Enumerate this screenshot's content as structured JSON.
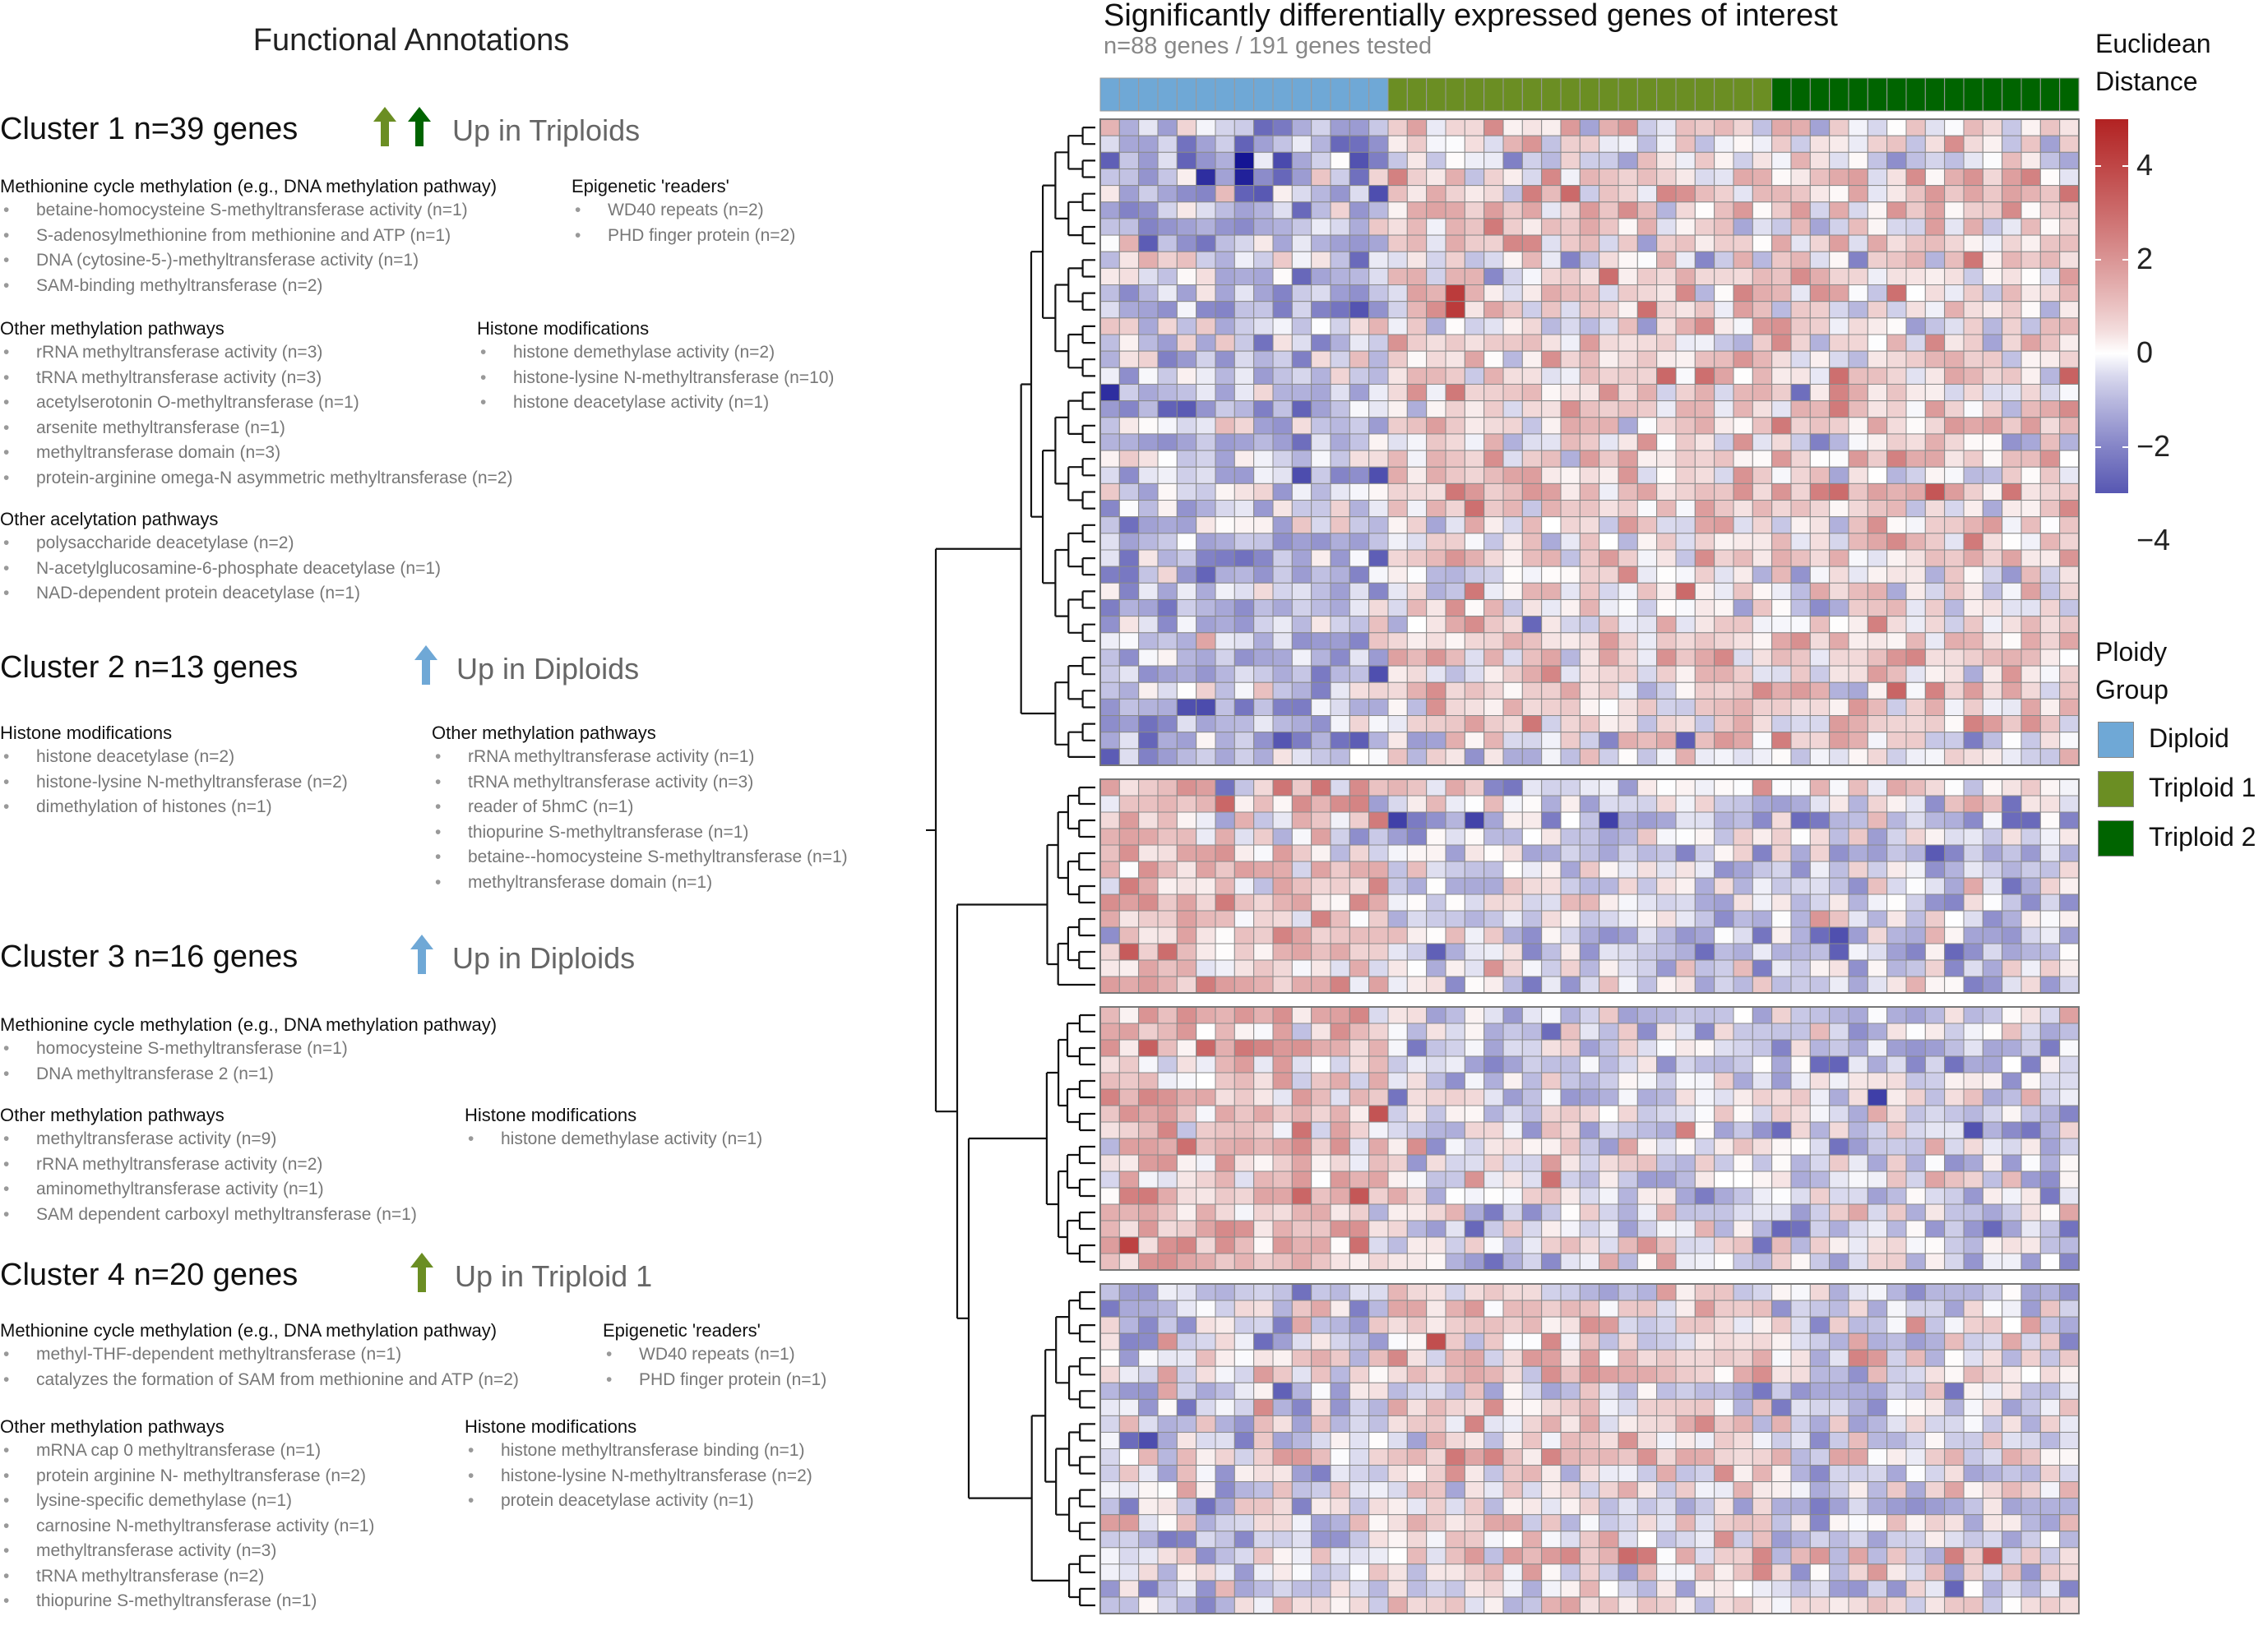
{
  "annotations": {
    "title": "Functional Annotations",
    "clusters": [
      {
        "title": "Cluster 1 n=39 genes",
        "up_label": "Up in Triploids",
        "arrow_colors": [
          "#6b8e23",
          "#006400"
        ],
        "groups": [
          {
            "heading": "Methionine cycle methylation (e.g., DNA methylation pathway)",
            "items": [
              "betaine-homocysteine S-methyltransferase activity (n=1)",
              "S-adenosylmethionine from methionine and ATP (n=1)",
              "DNA (cytosine-5-)-methyltransferase activity (n=1)",
              "SAM-binding methyltransferase (n=2)"
            ]
          },
          {
            "heading": "Epigenetic 'readers'",
            "items": [
              "WD40 repeats (n=2)",
              "PHD finger protein (n=2)"
            ]
          },
          {
            "heading": "Other methylation pathways",
            "items": [
              "rRNA methyltransferase activity (n=3)",
              "tRNA methyltransferase activity (n=3)",
              "acetylserotonin O-methyltransferase (n=1)",
              "arsenite methyltransferase (n=1)",
              "methyltransferase domain (n=3)",
              "protein-arginine omega-N asymmetric methyltransferase (n=2)"
            ]
          },
          {
            "heading": "Histone modifications",
            "items": [
              "histone demethylase activity (n=2)",
              "histone-lysine N-methyltransferase (n=10)",
              "histone deacetylase activity (n=1)"
            ]
          },
          {
            "heading": "Other acelytation pathways",
            "items": [
              "polysaccharide deacetylase (n=2)",
              "N-acetylglucosamine-6-phosphate deacetylase (n=1)",
              "NAD-dependent protein deacetylase (n=1)"
            ]
          }
        ]
      },
      {
        "title": "Cluster 2 n=13 genes",
        "up_label": "Up in Diploids",
        "arrow_colors": [
          "#6fa8d6"
        ],
        "groups": [
          {
            "heading": "Histone modifications",
            "items": [
              "histone deacetylase (n=2)",
              "histone-lysine N-methyltransferase (n=2)",
              "dimethylation of histones (n=1)"
            ]
          },
          {
            "heading": "Other methylation pathways",
            "items": [
              "rRNA methyltransferase activity (n=1)",
              "tRNA methyltransferase activity (n=3)",
              "reader of 5hmC (n=1)",
              "thiopurine S-methyltransferase (n=1)",
              "betaine--homocysteine S-methyltransferase (n=1)",
              "methyltransferase domain (n=1)"
            ]
          }
        ]
      },
      {
        "title": "Cluster 3 n=16 genes",
        "up_label": "Up in Diploids",
        "arrow_colors": [
          "#6fa8d6"
        ],
        "groups": [
          {
            "heading": "Methionine cycle methylation (e.g., DNA methylation pathway)",
            "items": [
              "homocysteine S-methyltransferase (n=1)",
              "DNA methyltransferase 2 (n=1)"
            ]
          },
          {
            "heading": "Other methylation pathways",
            "items": [
              "methyltransferase activity (n=9)",
              "rRNA methyltransferase activity (n=2)",
              "aminomethyltransferase activity (n=1)",
              "SAM dependent carboxyl methyltransferase (n=1)"
            ]
          },
          {
            "heading": "Histone modifications",
            "items": [
              "histone demethylase activity  (n=1)"
            ]
          }
        ]
      },
      {
        "title": "Cluster 4 n=20 genes",
        "up_label": "Up in Triploid 1",
        "arrow_colors": [
          "#6b8e23"
        ],
        "groups": [
          {
            "heading": "Methionine cycle methylation (e.g., DNA methylation pathway)",
            "items": [
              "methyl-THF-dependent methyltransferase (n=1)",
              "catalyzes the formation of SAM from methionine and ATP (n=2)"
            ]
          },
          {
            "heading": "Epigenetic 'readers'",
            "items": [
              "WD40 repeats (n=1)",
              "PHD finger protein (n=1)"
            ]
          },
          {
            "heading": "Other methylation pathways",
            "items": [
              "mRNA cap 0 methyltransferase (n=1)",
              "protein arginine N- methyltransferase (n=2)",
              "lysine-specific demethylase (n=1)",
              "carnosine N-methyltransferase activity (n=1)",
              "methyltransferase activity (n=3)",
              "tRNA methyltransferase (n=2)",
              "thiopurine S-methyltransferase (n=1)"
            ]
          },
          {
            "heading": "Histone modifications",
            "items": [
              "histone methyltransferase binding  (n=1)",
              "histone-lysine N-methyltransferase (n=2)",
              "protein deacetylase activity (n=1)"
            ]
          }
        ]
      }
    ]
  },
  "chart_data": {
    "type": "heatmap",
    "title": "Significantly differentially expressed genes of interest",
    "subtitle": "n=88 genes / 191 genes tested",
    "color_scale": {
      "title_line1": "Euclidean",
      "title_line2": "Distance",
      "ticks": [
        "4",
        "2",
        "0",
        "−2",
        "−4"
      ],
      "tick_values": [
        4,
        2,
        0,
        -2,
        -4
      ],
      "range": [
        -5,
        5
      ],
      "colors": {
        "low": "#00008b",
        "mid": "#ffffff",
        "high": "#b22222"
      }
    },
    "ploidy_legend": {
      "title_line1": "Ploidy",
      "title_line2": "Group",
      "groups": [
        {
          "label": "Diploid",
          "color": "#6fa8d6",
          "samples": 15
        },
        {
          "label": "Triploid 1",
          "color": "#6b8e23",
          "samples": 20
        },
        {
          "label": "Triploid 2",
          "color": "#006400",
          "samples": 16
        }
      ]
    },
    "row_clusters": [
      {
        "name": "Cluster 1",
        "genes": 39,
        "pattern": "up_triploids"
      },
      {
        "name": "Cluster 2",
        "genes": 13,
        "pattern": "up_diploids"
      },
      {
        "name": "Cluster 3",
        "genes": 16,
        "pattern": "up_diploids"
      },
      {
        "name": "Cluster 4",
        "genes": 20,
        "pattern": "up_triploid1"
      }
    ],
    "notable_values": [
      {
        "cluster": 1,
        "gene_index": 10,
        "sample_index": 18,
        "value": 4.3
      },
      {
        "cluster": 1,
        "gene_index": 11,
        "sample_index": 18,
        "value": 4.3
      },
      {
        "cluster": 1,
        "gene_index": 2,
        "sample_index": 7,
        "value": -4.5
      },
      {
        "cluster": 1,
        "gene_index": 3,
        "sample_index": 7,
        "value": -4.2
      },
      {
        "cluster": 3,
        "gene_index": 14,
        "sample_index": 1,
        "value": 4.1
      },
      {
        "cluster": 4,
        "gene_index": 3,
        "sample_index": 17,
        "value": 3.8
      }
    ]
  }
}
